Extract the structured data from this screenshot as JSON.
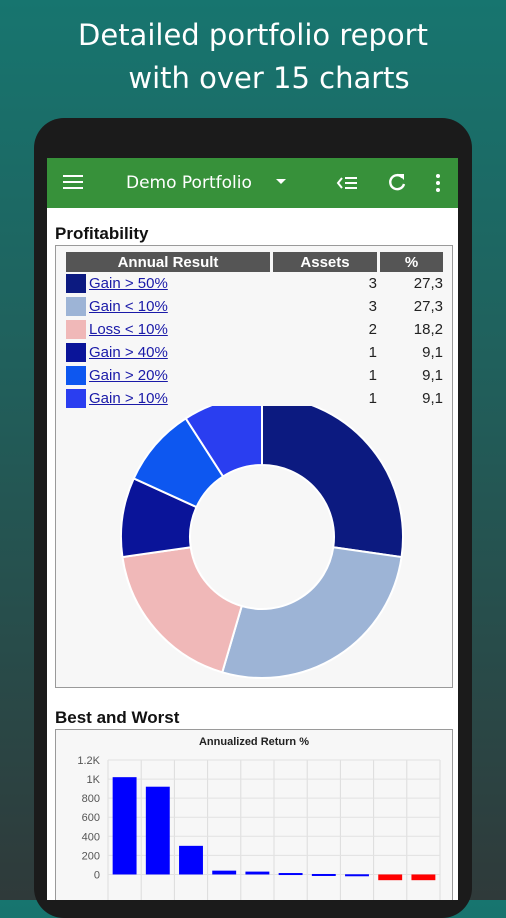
{
  "headline": [
    "Detailed portfolio report",
    "with over 15 charts"
  ],
  "appbar": {
    "title": "Demo Portfolio"
  },
  "profitability": {
    "title": "Profitability",
    "headers": [
      "Annual Result",
      "Assets",
      "%"
    ],
    "rows": [
      {
        "label": "Gain > 50%",
        "assets": "3",
        "pct": "27,3",
        "color": "#0c1a80"
      },
      {
        "label": "Gain < 10%",
        "assets": "3",
        "pct": "27,3",
        "color": "#9db4d6"
      },
      {
        "label": "Loss < 10%",
        "assets": "2",
        "pct": "18,2",
        "color": "#f0b8b8"
      },
      {
        "label": "Gain > 40%",
        "assets": "1",
        "pct": "9,1",
        "color": "#0a1499"
      },
      {
        "label": "Gain > 20%",
        "assets": "1",
        "pct": "9,1",
        "color": "#0d57f0"
      },
      {
        "label": "Gain > 10%",
        "assets": "1",
        "pct": "9,1",
        "color": "#2a3ef0"
      }
    ]
  },
  "best_worst": {
    "title": "Best and Worst"
  },
  "chart_data": [
    {
      "type": "pie",
      "categories": [
        "Gain > 50%",
        "Gain < 10%",
        "Loss < 10%",
        "Gain > 40%",
        "Gain > 20%",
        "Gain > 10%"
      ],
      "values": [
        27.3,
        27.3,
        18.2,
        9.1,
        9.1,
        9.1
      ],
      "colors": [
        "#0c1a80",
        "#9db4d6",
        "#f0b8b8",
        "#0a1499",
        "#0d57f0",
        "#2a3ef0"
      ],
      "donut": true
    },
    {
      "type": "bar",
      "title": "Annualized Return %",
      "ticks": [
        "1.2K",
        "1K",
        "800",
        "600",
        "400",
        "200",
        "0"
      ],
      "ylim": [
        -100,
        1200
      ],
      "values": [
        1020,
        920,
        300,
        40,
        30,
        15,
        5,
        2,
        -60,
        -60
      ],
      "colors": [
        "#0000ff",
        "#0000ff",
        "#0000ff",
        "#0000ff",
        "#0000ff",
        "#0000ff",
        "#0000ff",
        "#0000ff",
        "#ff0000",
        "#ff0000"
      ]
    }
  ]
}
